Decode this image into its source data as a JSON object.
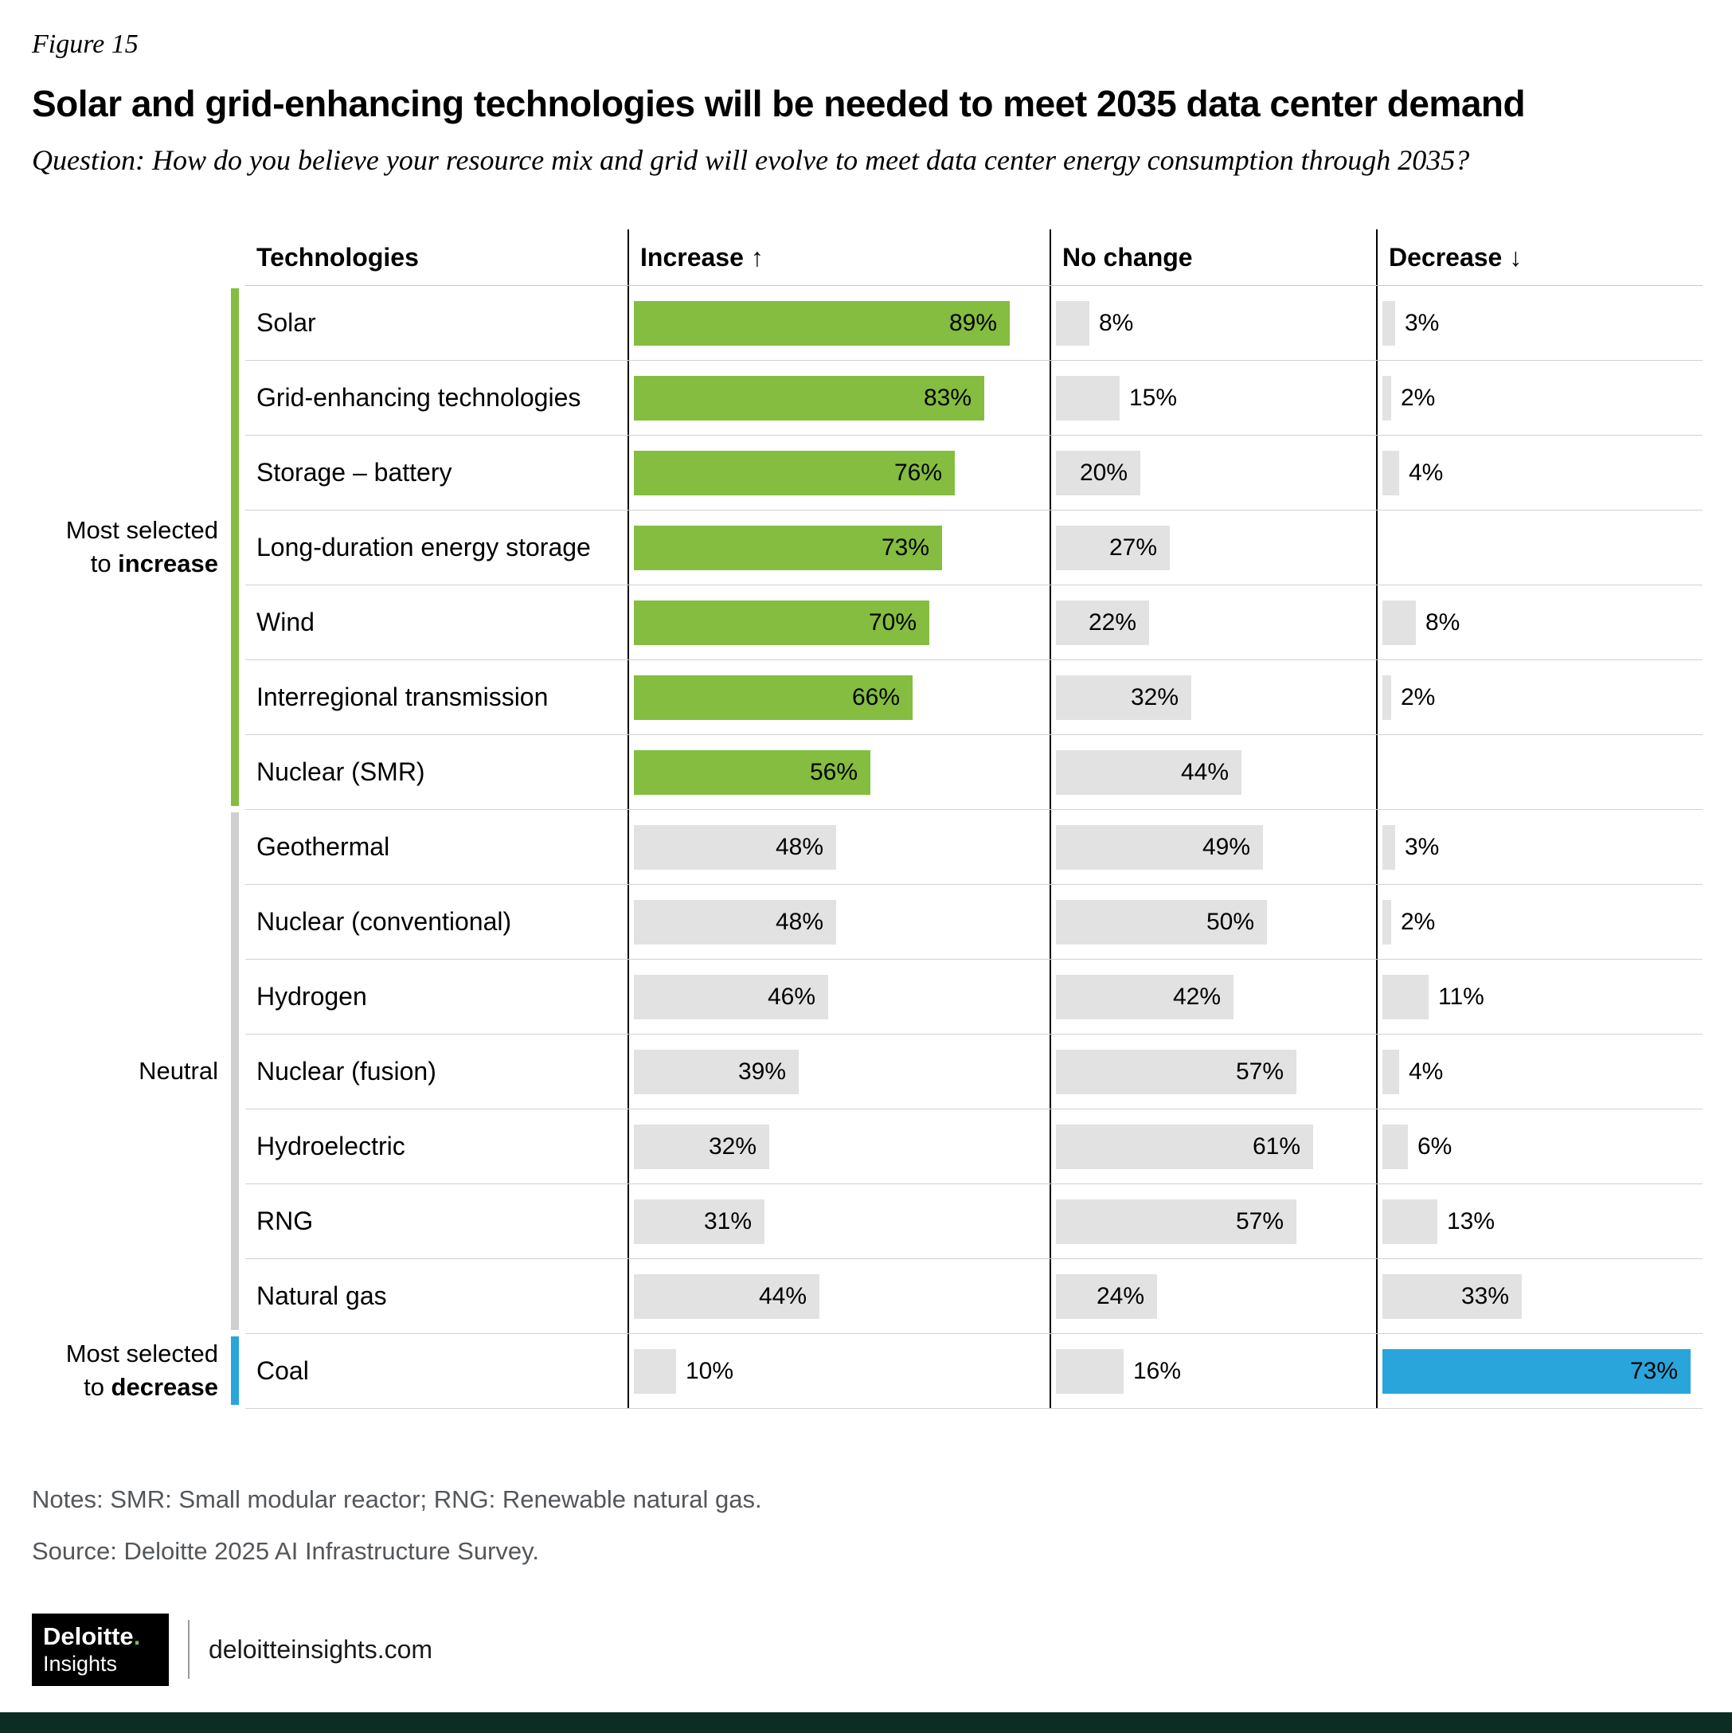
{
  "figure_label": "Figure 15",
  "title": "Solar and grid-enhancing technologies will be needed to meet 2035 data center demand",
  "question": "Question: How do you believe your resource mix and grid will evolve to meet data center energy consumption through 2035?",
  "notes": "Notes: SMR: Small modular reactor; RNG: Renewable natural gas.",
  "source": "Source: Deloitte 2025 AI Infrastructure Survey.",
  "footer": {
    "brand": "Deloitte",
    "brand_dot": ".",
    "brand_sub": "Insights",
    "site": "deloitteinsights.com"
  },
  "colors": {
    "green": "#84BD3F",
    "blue": "#2AA5DC",
    "gray_bar": "#E2E2E2",
    "neutral_bracket": "#CFCFCF",
    "footer_bar": "#0D2D24"
  },
  "group_labels": {
    "increase": {
      "line1": "Most selected",
      "line2_prefix": "to ",
      "line2_bold": "increase"
    },
    "neutral": {
      "label": "Neutral"
    },
    "decrease": {
      "line1": "Most selected",
      "line2_prefix": "to ",
      "line2_bold": "decrease"
    }
  },
  "chart_data": {
    "type": "bar",
    "title": "Solar and grid-enhancing technologies will be needed to meet 2035 data center demand",
    "unit": "%",
    "columns": [
      "Technologies",
      "Increase ↑",
      "No change",
      "Decrease ↓"
    ],
    "legend_position": "none",
    "groups": [
      {
        "id": "increase",
        "label": "Most selected to increase",
        "row_range": [
          0,
          6
        ],
        "color": "#84BD3F"
      },
      {
        "id": "neutral",
        "label": "Neutral",
        "row_range": [
          7,
          13
        ],
        "color": "#CFCFCF"
      },
      {
        "id": "decrease",
        "label": "Most selected to decrease",
        "row_range": [
          14,
          14
        ],
        "color": "#2AA5DC"
      }
    ],
    "rows": [
      {
        "tech": "Solar",
        "group": "increase",
        "increase": 89,
        "no_change": 8,
        "decrease": 3
      },
      {
        "tech": "Grid-enhancing technologies",
        "group": "increase",
        "increase": 83,
        "no_change": 15,
        "decrease": 2
      },
      {
        "tech": "Storage – battery",
        "group": "increase",
        "increase": 76,
        "no_change": 20,
        "decrease": 4
      },
      {
        "tech": "Long-duration energy storage",
        "group": "increase",
        "increase": 73,
        "no_change": 27,
        "decrease": null
      },
      {
        "tech": "Wind",
        "group": "increase",
        "increase": 70,
        "no_change": 22,
        "decrease": 8
      },
      {
        "tech": "Interregional transmission",
        "group": "increase",
        "increase": 66,
        "no_change": 32,
        "decrease": 2
      },
      {
        "tech": "Nuclear (SMR)",
        "group": "increase",
        "increase": 56,
        "no_change": 44,
        "decrease": null
      },
      {
        "tech": "Geothermal",
        "group": "neutral",
        "increase": 48,
        "no_change": 49,
        "decrease": 3
      },
      {
        "tech": "Nuclear (conventional)",
        "group": "neutral",
        "increase": 48,
        "no_change": 50,
        "decrease": 2
      },
      {
        "tech": "Hydrogen",
        "group": "neutral",
        "increase": 46,
        "no_change": 42,
        "decrease": 11
      },
      {
        "tech": "Nuclear (fusion)",
        "group": "neutral",
        "increase": 39,
        "no_change": 57,
        "decrease": 4
      },
      {
        "tech": "Hydroelectric",
        "group": "neutral",
        "increase": 32,
        "no_change": 61,
        "decrease": 6
      },
      {
        "tech": "RNG",
        "group": "neutral",
        "increase": 31,
        "no_change": 57,
        "decrease": 13
      },
      {
        "tech": "Natural gas",
        "group": "neutral",
        "increase": 44,
        "no_change": 24,
        "decrease": 33
      },
      {
        "tech": "Coal",
        "group": "decrease",
        "increase": 10,
        "no_change": 16,
        "decrease": 73
      }
    ]
  }
}
